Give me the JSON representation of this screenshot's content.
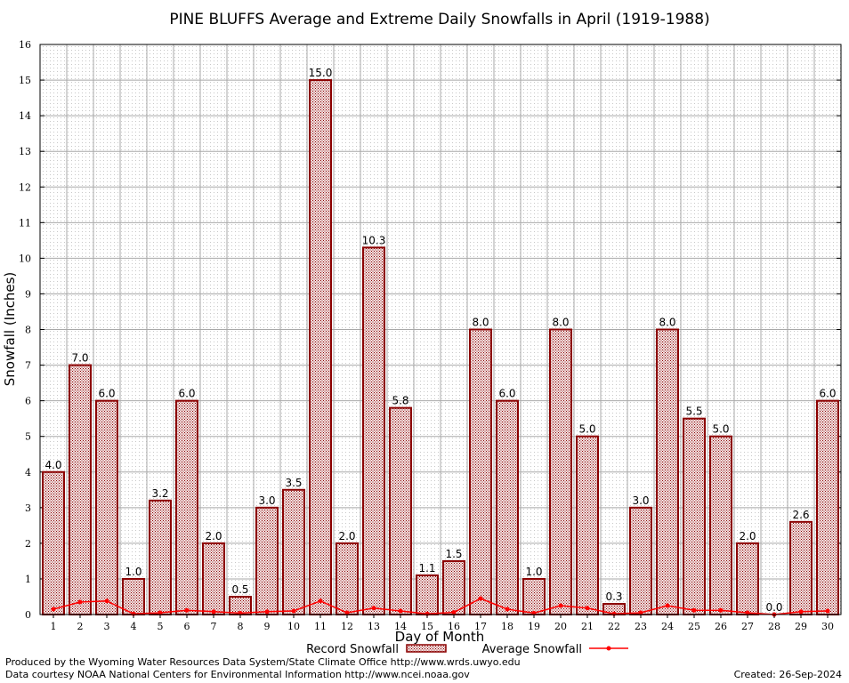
{
  "chart_data": {
    "type": "bar",
    "title": "PINE BLUFFS Average and Extreme Daily Snowfalls in April (1919-1988)",
    "xlabel": "Day of Month",
    "ylabel": "Snowfall (Inches)",
    "ylim": [
      0,
      16
    ],
    "yticks": [
      "0",
      "1",
      "2",
      "3",
      "4",
      "5",
      "6",
      "7",
      "8",
      "9",
      "10",
      "11",
      "12",
      "13",
      "14",
      "15",
      "16"
    ],
    "grid": true,
    "legend_position": "bottom",
    "categories": [
      "1",
      "2",
      "3",
      "4",
      "5",
      "6",
      "7",
      "8",
      "9",
      "10",
      "11",
      "12",
      "13",
      "14",
      "15",
      "16",
      "17",
      "18",
      "19",
      "20",
      "21",
      "22",
      "23",
      "24",
      "25",
      "26",
      "27",
      "28",
      "29",
      "30"
    ],
    "series": [
      {
        "name": "Record Snowfall",
        "kind": "bar",
        "color": "#8b0000",
        "values": [
          4.0,
          7.0,
          6.0,
          1.0,
          3.2,
          6.0,
          2.0,
          0.5,
          3.0,
          3.5,
          15.0,
          2.0,
          10.3,
          5.8,
          1.1,
          1.5,
          8.0,
          6.0,
          1.0,
          8.0,
          5.0,
          0.3,
          3.0,
          8.0,
          5.5,
          5.0,
          2.0,
          0.0,
          2.6,
          6.0
        ],
        "labels": [
          "4.0",
          "7.0",
          "6.0",
          "1.0",
          "3.2",
          "6.0",
          "2.0",
          "0.5",
          "3.0",
          "3.5",
          "15.0",
          "2.0",
          "10.3",
          "5.8",
          "1.1",
          "1.5",
          "8.0",
          "6.0",
          "1.0",
          "8.0",
          "5.0",
          "0.3",
          "3.0",
          "8.0",
          "5.5",
          "5.0",
          "2.0",
          "0.0",
          "2.6",
          "6.0"
        ]
      },
      {
        "name": "Average Snowfall",
        "kind": "line",
        "color": "#ff0000",
        "values": [
          0.15,
          0.35,
          0.38,
          0.02,
          0.05,
          0.12,
          0.08,
          0.04,
          0.08,
          0.1,
          0.38,
          0.05,
          0.18,
          0.1,
          0.02,
          0.06,
          0.45,
          0.15,
          0.04,
          0.25,
          0.18,
          0.02,
          0.05,
          0.25,
          0.12,
          0.12,
          0.05,
          0.0,
          0.08,
          0.1
        ]
      }
    ]
  },
  "footer": {
    "produced_by": "Produced by the Wyoming Water Resources Data System/State Climate Office http://www.wrds.uwyo.edu",
    "courtesy": "Data courtesy NOAA National Centers for Environmental Information http://www.ncei.noaa.gov",
    "created": "Created: 26-Sep-2024"
  }
}
